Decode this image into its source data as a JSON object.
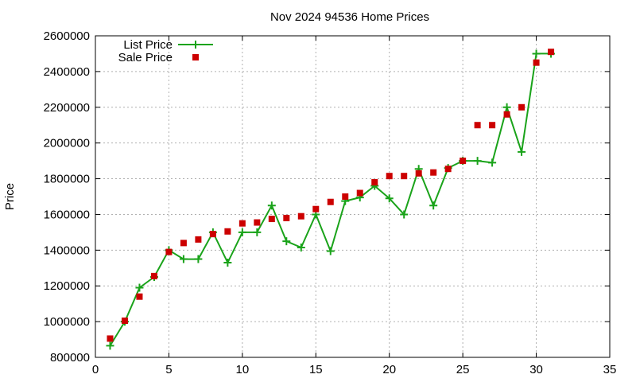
{
  "chart_data": {
    "type": "line",
    "title": "Nov 2024 94536 Home Prices",
    "xlabel": "",
    "ylabel": "Price",
    "xlim": [
      0,
      35
    ],
    "ylim": [
      800000,
      2600000
    ],
    "x_ticks": [
      0,
      5,
      10,
      15,
      20,
      25,
      30,
      35
    ],
    "y_ticks": [
      800000,
      1000000,
      1200000,
      1400000,
      1600000,
      1800000,
      2000000,
      2200000,
      2400000,
      2600000
    ],
    "grid": true,
    "legend_position": "top-left",
    "series": [
      {
        "name": "List Price",
        "style": "line-with-plus-markers",
        "color": "#1aa31a",
        "x": [
          1,
          2,
          3,
          4,
          5,
          6,
          7,
          8,
          9,
          10,
          11,
          12,
          13,
          14,
          15,
          16,
          17,
          18,
          19,
          20,
          21,
          22,
          23,
          24,
          25,
          26,
          27,
          28,
          29,
          30,
          31
        ],
        "values": [
          865000,
          1000000,
          1190000,
          1250000,
          1400000,
          1350000,
          1350000,
          1500000,
          1330000,
          1500000,
          1500000,
          1650000,
          1450000,
          1415000,
          1600000,
          1395000,
          1675000,
          1695000,
          1760000,
          1690000,
          1600000,
          1855000,
          1650000,
          1860000,
          1900000,
          1900000,
          1890000,
          2200000,
          1950000,
          2500000,
          2500000
        ]
      },
      {
        "name": "Sale Price",
        "style": "square-markers",
        "color": "#cc0000",
        "x": [
          1,
          2,
          3,
          4,
          5,
          6,
          7,
          8,
          9,
          10,
          11,
          12,
          13,
          14,
          15,
          16,
          17,
          18,
          19,
          20,
          21,
          22,
          23,
          24,
          25,
          26,
          27,
          28,
          29,
          30,
          31
        ],
        "values": [
          905000,
          1005000,
          1140000,
          1255000,
          1390000,
          1440000,
          1460000,
          1490000,
          1505000,
          1550000,
          1555000,
          1575000,
          1580000,
          1590000,
          1630000,
          1670000,
          1700000,
          1720000,
          1780000,
          1815000,
          1815000,
          1830000,
          1835000,
          1855000,
          1900000,
          2100000,
          2100000,
          2160000,
          2200000,
          2450000,
          2510000
        ]
      }
    ]
  }
}
